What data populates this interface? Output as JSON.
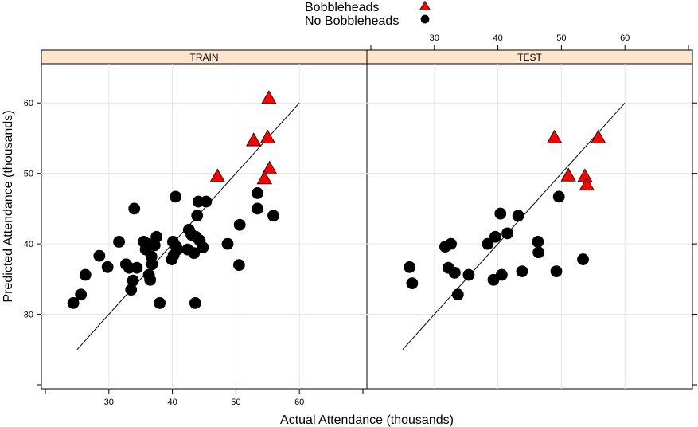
{
  "legend": {
    "entries": [
      {
        "label": "Bobbleheads",
        "symbol": "triangle",
        "color": "#ff0000"
      },
      {
        "label": "No Bobbleheads",
        "symbol": "circle",
        "color": "#000000"
      }
    ]
  },
  "colors": {
    "strip_fill": "#ffe5cc",
    "bobblehead_fill": "#ff0000",
    "no_bobblehead_fill": "#000000",
    "grid": "#e6e6e6",
    "reference_line": "#000000"
  },
  "chart_data": {
    "type": "scatter",
    "xlabel": "Actual Attendance (thousands)",
    "ylabel": "Predicted Attendance (thousands)",
    "xlim": [
      20,
      70
    ],
    "ylim": [
      20,
      65
    ],
    "x_ticks": [
      30,
      40,
      50,
      60
    ],
    "y_ticks": [
      30,
      40,
      50,
      60
    ],
    "reference_line": {
      "x": [
        25,
        60
      ],
      "y": [
        25,
        60
      ]
    },
    "grid": true,
    "legend_position": "top-center",
    "panels": [
      {
        "name": "TRAIN",
        "series": [
          {
            "name": "Bobbleheads",
            "marker": "triangle",
            "points": [
              [
                47.1,
                49.5
              ],
              [
                52.8,
                54.6
              ],
              [
                55.0,
                55.0
              ],
              [
                55.2,
                60.6
              ],
              [
                55.3,
                50.6
              ],
              [
                54.5,
                49.2
              ]
            ]
          },
          {
            "name": "No Bobbleheads",
            "marker": "circle",
            "points": [
              [
                24.4,
                31.6
              ],
              [
                25.6,
                32.8
              ],
              [
                26.3,
                35.6
              ],
              [
                28.5,
                38.3
              ],
              [
                29.8,
                36.7
              ],
              [
                31.6,
                40.3
              ],
              [
                32.7,
                37.1
              ],
              [
                33.2,
                36.6
              ],
              [
                33.5,
                33.5
              ],
              [
                33.8,
                34.8
              ],
              [
                34.0,
                45.0
              ],
              [
                34.4,
                36.6
              ],
              [
                35.5,
                40.3
              ],
              [
                35.8,
                39.2
              ],
              [
                36.2,
                40.0
              ],
              [
                36.3,
                35.6
              ],
              [
                36.5,
                34.9
              ],
              [
                36.8,
                37.1
              ],
              [
                36.7,
                38.2
              ],
              [
                37.2,
                39.8
              ],
              [
                37.5,
                41.0
              ],
              [
                38.0,
                31.6
              ],
              [
                39.9,
                37.8
              ],
              [
                40.1,
                40.3
              ],
              [
                40.2,
                38.4
              ],
              [
                40.5,
                46.7
              ],
              [
                40.6,
                39.6
              ],
              [
                40.8,
                39.2
              ],
              [
                42.4,
                39.2
              ],
              [
                42.6,
                42.0
              ],
              [
                43.0,
                41.3
              ],
              [
                43.4,
                38.7
              ],
              [
                43.6,
                31.6
              ],
              [
                43.7,
                41.0
              ],
              [
                43.9,
                44.0
              ],
              [
                44.1,
                46.0
              ],
              [
                44.3,
                40.5
              ],
              [
                44.8,
                39.5
              ],
              [
                45.3,
                46.0
              ],
              [
                48.7,
                40.0
              ],
              [
                50.5,
                37.0
              ],
              [
                50.6,
                42.7
              ],
              [
                53.4,
                47.2
              ],
              [
                53.4,
                45.0
              ],
              [
                55.9,
                44.0
              ]
            ]
          }
        ]
      },
      {
        "name": "TEST",
        "series": [
          {
            "name": "Bobbleheads",
            "marker": "triangle",
            "points": [
              [
                48.9,
                55.0
              ],
              [
                51.1,
                49.6
              ],
              [
                53.7,
                49.5
              ],
              [
                54.0,
                48.3
              ],
              [
                55.8,
                55.0
              ]
            ]
          },
          {
            "name": "No Bobbleheads",
            "marker": "circle",
            "points": [
              [
                26.1,
                36.7
              ],
              [
                26.5,
                34.4
              ],
              [
                31.7,
                39.6
              ],
              [
                32.2,
                36.6
              ],
              [
                32.6,
                40.0
              ],
              [
                33.2,
                35.9
              ],
              [
                33.7,
                32.8
              ],
              [
                35.4,
                35.6
              ],
              [
                38.4,
                40.0
              ],
              [
                39.3,
                34.9
              ],
              [
                39.6,
                41.0
              ],
              [
                40.4,
                44.3
              ],
              [
                40.6,
                35.6
              ],
              [
                41.5,
                41.5
              ],
              [
                43.2,
                44.0
              ],
              [
                43.8,
                36.1
              ],
              [
                46.3,
                40.3
              ],
              [
                46.4,
                38.8
              ],
              [
                49.2,
                36.1
              ],
              [
                49.6,
                46.7
              ],
              [
                53.4,
                37.8
              ]
            ]
          }
        ]
      }
    ]
  }
}
